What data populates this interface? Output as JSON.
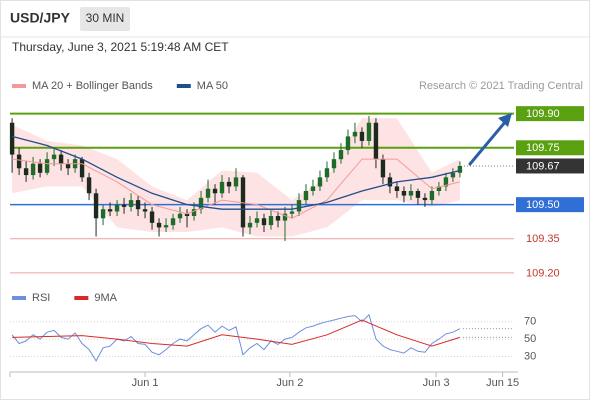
{
  "header": {
    "symbol": "USD/JPY",
    "timeframe": "30 MIN",
    "timestamp": "Thursday, June 3, 2021 5:19:48 AM CET",
    "credit": "Research © 2021 Trading Central"
  },
  "chart_data": [
    {
      "type": "candlestick",
      "up_color": "#1e6b2a",
      "down_color": "#1f2a1f",
      "open": [
        109.86,
        109.72,
        109.66,
        109.63,
        109.68,
        109.64,
        109.7,
        109.72,
        109.68,
        109.66,
        109.7,
        109.62,
        109.55,
        109.44,
        109.48,
        109.47,
        109.5,
        109.49,
        109.52,
        109.48,
        109.47,
        109.42,
        109.4,
        109.41,
        109.44,
        109.46,
        109.45,
        109.48,
        109.53,
        109.57,
        109.55,
        109.6,
        109.58,
        109.62,
        109.4,
        109.42,
        109.44,
        109.41,
        109.45,
        109.43,
        109.46,
        109.47,
        109.52,
        109.56,
        109.58,
        109.62,
        109.66,
        109.7,
        109.74,
        109.8,
        109.82,
        109.78,
        109.86,
        109.7,
        109.62,
        109.58,
        109.56,
        109.54,
        109.56,
        109.53,
        109.52,
        109.56,
        109.58,
        109.62,
        109.64
      ],
      "high": [
        109.88,
        109.75,
        109.69,
        109.71,
        109.7,
        109.73,
        109.75,
        109.74,
        109.7,
        109.72,
        109.71,
        109.64,
        109.57,
        109.5,
        109.51,
        109.52,
        109.53,
        109.55,
        109.54,
        109.51,
        109.49,
        109.44,
        109.44,
        109.46,
        109.49,
        109.48,
        109.51,
        109.56,
        109.61,
        109.59,
        109.63,
        109.62,
        109.66,
        109.63,
        109.45,
        109.47,
        109.46,
        109.48,
        109.47,
        109.49,
        109.5,
        109.55,
        109.59,
        109.61,
        109.65,
        109.69,
        109.73,
        109.77,
        109.83,
        109.86,
        109.84,
        109.89,
        109.88,
        109.72,
        109.64,
        109.6,
        109.58,
        109.59,
        109.57,
        109.55,
        109.58,
        109.6,
        109.64,
        109.66,
        109.69
      ],
      "low": [
        109.64,
        109.63,
        109.6,
        109.61,
        109.62,
        109.63,
        109.67,
        109.65,
        109.63,
        109.64,
        109.6,
        109.52,
        109.36,
        109.41,
        109.45,
        109.45,
        109.46,
        109.47,
        109.45,
        109.44,
        109.39,
        109.36,
        109.38,
        109.39,
        109.42,
        109.4,
        109.43,
        109.46,
        109.51,
        109.5,
        109.53,
        109.55,
        109.56,
        109.36,
        109.37,
        109.4,
        109.38,
        109.39,
        109.4,
        109.34,
        109.44,
        109.45,
        109.5,
        109.54,
        109.56,
        109.6,
        109.64,
        109.68,
        109.72,
        109.77,
        109.75,
        109.76,
        109.66,
        109.59,
        109.55,
        109.53,
        109.51,
        109.52,
        109.5,
        109.49,
        109.5,
        109.54,
        109.56,
        109.6,
        109.62
      ],
      "close": [
        109.72,
        109.66,
        109.63,
        109.68,
        109.64,
        109.7,
        109.72,
        109.68,
        109.66,
        109.7,
        109.62,
        109.55,
        109.44,
        109.48,
        109.47,
        109.5,
        109.49,
        109.52,
        109.48,
        109.47,
        109.42,
        109.4,
        109.41,
        109.44,
        109.46,
        109.45,
        109.48,
        109.53,
        109.57,
        109.55,
        109.6,
        109.58,
        109.62,
        109.4,
        109.42,
        109.44,
        109.41,
        109.45,
        109.43,
        109.46,
        109.47,
        109.52,
        109.56,
        109.58,
        109.62,
        109.66,
        109.7,
        109.74,
        109.8,
        109.82,
        109.78,
        109.86,
        109.7,
        109.62,
        109.58,
        109.56,
        109.54,
        109.56,
        109.53,
        109.52,
        109.56,
        109.58,
        109.62,
        109.64,
        109.67
      ],
      "series": [
        {
          "name": "MA 20 + Bollinger Bands",
          "color": "#f29a9a",
          "band_color": "#fde3e3",
          "x": [
            0,
            5,
            10,
            15,
            20,
            25,
            30,
            35,
            40,
            45,
            50,
            55,
            60,
            64
          ],
          "values": [
            109.7,
            109.68,
            109.68,
            109.6,
            109.5,
            109.46,
            109.52,
            109.5,
            109.44,
            109.52,
            109.7,
            109.7,
            109.57,
            109.6
          ],
          "upper": [
            109.85,
            109.78,
            109.76,
            109.7,
            109.58,
            109.52,
            109.65,
            109.64,
            109.52,
            109.62,
            109.88,
            109.88,
            109.64,
            109.7
          ],
          "lower": [
            109.55,
            109.58,
            109.58,
            109.4,
            109.38,
            109.38,
            109.4,
            109.36,
            109.36,
            109.4,
            109.52,
            109.52,
            109.49,
            109.52
          ]
        },
        {
          "name": "MA 50",
          "color": "#1f4e8c",
          "x": [
            0,
            5,
            10,
            15,
            20,
            25,
            30,
            35,
            40,
            45,
            50,
            55,
            60,
            64
          ],
          "values": [
            109.8,
            109.76,
            109.7,
            109.62,
            109.55,
            109.5,
            109.48,
            109.48,
            109.48,
            109.51,
            109.56,
            109.6,
            109.62,
            109.65
          ]
        }
      ],
      "levels": {
        "values": [
          109.9,
          109.75,
          109.67,
          109.5,
          109.35,
          109.2
        ],
        "value_labels": [
          "109.90",
          "109.75",
          "109.67",
          "109.50",
          "109.35",
          "109.20"
        ],
        "colors": [
          "#5aa010",
          "#5aa010",
          "#333333",
          "#2f6fd6",
          "#f2a0a0",
          "#f2a0a0"
        ],
        "line_styles": [
          "solid",
          "solid",
          "dotted",
          "solid",
          "solid",
          "solid"
        ],
        "label_boxes": [
          true,
          true,
          true,
          true,
          false,
          false
        ]
      },
      "xlim": [
        -0.3,
        72.3
      ],
      "ylim": [
        109.16,
        109.96
      ]
    },
    {
      "type": "line",
      "series": [
        {
          "name": "RSI",
          "color": "#6d8fdc",
          "values": [
            55,
            45,
            48,
            55,
            50,
            58,
            60,
            52,
            50,
            57,
            45,
            38,
            25,
            40,
            42,
            50,
            48,
            53,
            45,
            44,
            35,
            32,
            38,
            45,
            50,
            48,
            55,
            62,
            66,
            58,
            65,
            60,
            64,
            32,
            40,
            45,
            38,
            48,
            44,
            50,
            52,
            58,
            63,
            65,
            68,
            70,
            72,
            74,
            76,
            77,
            70,
            78,
            50,
            42,
            38,
            36,
            34,
            40,
            36,
            35,
            45,
            50,
            56,
            58,
            62
          ]
        },
        {
          "name": "9MA",
          "color": "#d92a2a",
          "x": [
            0,
            5,
            10,
            15,
            20,
            25,
            30,
            35,
            40,
            45,
            50,
            55,
            60,
            64
          ],
          "values": [
            52,
            53,
            54,
            50,
            45,
            42,
            55,
            50,
            44,
            55,
            72,
            55,
            42,
            52
          ]
        }
      ],
      "xlim": [
        -0.3,
        72.3
      ],
      "ylim": [
        18,
        80
      ],
      "yticks": [
        30,
        50,
        70
      ],
      "grid": true,
      "xticks": [
        {
          "value": 19,
          "label": "Jun 1"
        },
        {
          "value": 39.7,
          "label": "Jun 2"
        },
        {
          "value": 60.6,
          "label": "Jun 3"
        },
        {
          "value": 70.1,
          "label": "Jun 15"
        }
      ]
    }
  ]
}
